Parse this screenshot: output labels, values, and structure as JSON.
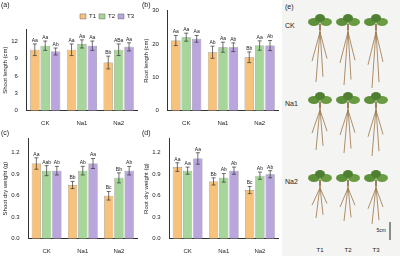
{
  "chart_data": [
    {
      "type": "bar",
      "title": "(a)",
      "y_label": "Shoot length (cm)",
      "categories": [
        "CK",
        "Na1",
        "Na2"
      ],
      "ylim": [
        0,
        14
      ],
      "yticks": [
        0,
        3,
        6,
        9,
        12
      ],
      "grid": false,
      "legend": "top-right",
      "series": [
        {
          "name": "T1",
          "color": "#f6c27c",
          "values": [
            10.5,
            10.5,
            8.3
          ],
          "errors": [
            1.0,
            1.0,
            1.1
          ],
          "letters": [
            "Aa",
            "Aa",
            "Bb"
          ]
        },
        {
          "name": "T2",
          "color": "#a6d69a",
          "values": [
            11.2,
            11.5,
            10.5
          ],
          "errors": [
            0.8,
            0.7,
            1.0
          ],
          "letters": [
            "Aa",
            "Aa",
            "ABa"
          ]
        },
        {
          "name": "T3",
          "color": "#b8a6dc",
          "values": [
            10.2,
            11.2,
            11.0
          ],
          "errors": [
            0.6,
            0.8,
            0.7
          ],
          "letters": [
            "Ab",
            "Aa",
            "Aa"
          ]
        }
      ]
    },
    {
      "type": "bar",
      "title": "(b)",
      "y_label": "Root length (cm)",
      "categories": [
        "CK",
        "Na1",
        "Na2"
      ],
      "ylim": [
        0,
        30
      ],
      "yticks": [
        0,
        10,
        20,
        30
      ],
      "grid": false,
      "series": [
        {
          "name": "T1",
          "color": "#f6c27c",
          "values": [
            21.0,
            17.5,
            16.0
          ],
          "errors": [
            1.5,
            1.8,
            1.6
          ],
          "letters": [
            "Aa",
            "Ab",
            "Bb"
          ]
        },
        {
          "name": "T2",
          "color": "#a6d69a",
          "values": [
            22.0,
            19.0,
            19.5
          ],
          "errors": [
            1.2,
            1.5,
            1.4
          ],
          "letters": [
            "Aa",
            "Aa",
            "Aa"
          ]
        },
        {
          "name": "T3",
          "color": "#b8a6dc",
          "values": [
            21.5,
            19.0,
            19.5
          ],
          "errors": [
            1.0,
            1.3,
            1.5
          ],
          "letters": [
            "Aa",
            "Ab",
            "Ab"
          ]
        }
      ]
    },
    {
      "type": "bar",
      "title": "(c)",
      "y_label": "Shoot dry weight (g)",
      "categories": [
        "CK",
        "Na1",
        "Na2"
      ],
      "ylim": [
        0,
        1.4
      ],
      "yticks": [
        {
          "value": 0,
          "label": "0.0"
        },
        0.3,
        0.6,
        0.9,
        1.2
      ],
      "grid": false,
      "series": [
        {
          "name": "T1",
          "color": "#f6c27c",
          "values": [
            1.05,
            0.75,
            0.6
          ],
          "errors": [
            0.08,
            0.05,
            0.06
          ],
          "letters": [
            "Aa",
            "Bb",
            "Bc"
          ]
        },
        {
          "name": "T2",
          "color": "#a6d69a",
          "values": [
            0.95,
            0.95,
            0.85
          ],
          "errors": [
            0.07,
            0.06,
            0.07
          ],
          "letters": [
            "Aab",
            "Ab",
            "Bb"
          ]
        },
        {
          "name": "T3",
          "color": "#b8a6dc",
          "values": [
            0.95,
            1.05,
            0.95
          ],
          "errors": [
            0.06,
            0.07,
            0.06
          ],
          "letters": [
            "Ab",
            "Aa",
            "Ab"
          ]
        }
      ]
    },
    {
      "type": "bar",
      "title": "(d)",
      "y_label": "Root dry weight (g)",
      "categories": [
        "CK",
        "Na1",
        "Na2"
      ],
      "ylim": [
        0,
        1.4
      ],
      "yticks": [
        {
          "value": 0,
          "label": "0.0"
        },
        0.3,
        0.6,
        0.9,
        1.2
      ],
      "grid": false,
      "series": [
        {
          "name": "T1",
          "color": "#f6c27c",
          "values": [
            1.0,
            0.8,
            0.68
          ],
          "errors": [
            0.06,
            0.05,
            0.05
          ],
          "letters": [
            "Aa",
            "Bb",
            "Bc"
          ]
        },
        {
          "name": "T2",
          "color": "#a6d69a",
          "values": [
            0.95,
            0.85,
            0.88
          ],
          "errors": [
            0.05,
            0.06,
            0.05
          ],
          "letters": [
            "Aa",
            "Ab",
            "Ab"
          ]
        },
        {
          "name": "T3",
          "color": "#b8a6dc",
          "values": [
            1.12,
            0.95,
            0.9
          ],
          "errors": [
            0.08,
            0.05,
            0.05
          ],
          "letters": [
            "Aa",
            "Ab",
            "Ab"
          ]
        }
      ]
    }
  ],
  "photo_panel": {
    "label": "(e)",
    "rows": [
      "CK",
      "Na1",
      "Na2"
    ],
    "columns": [
      "T1",
      "T2",
      "T3"
    ],
    "scale_bar": "5cm"
  }
}
